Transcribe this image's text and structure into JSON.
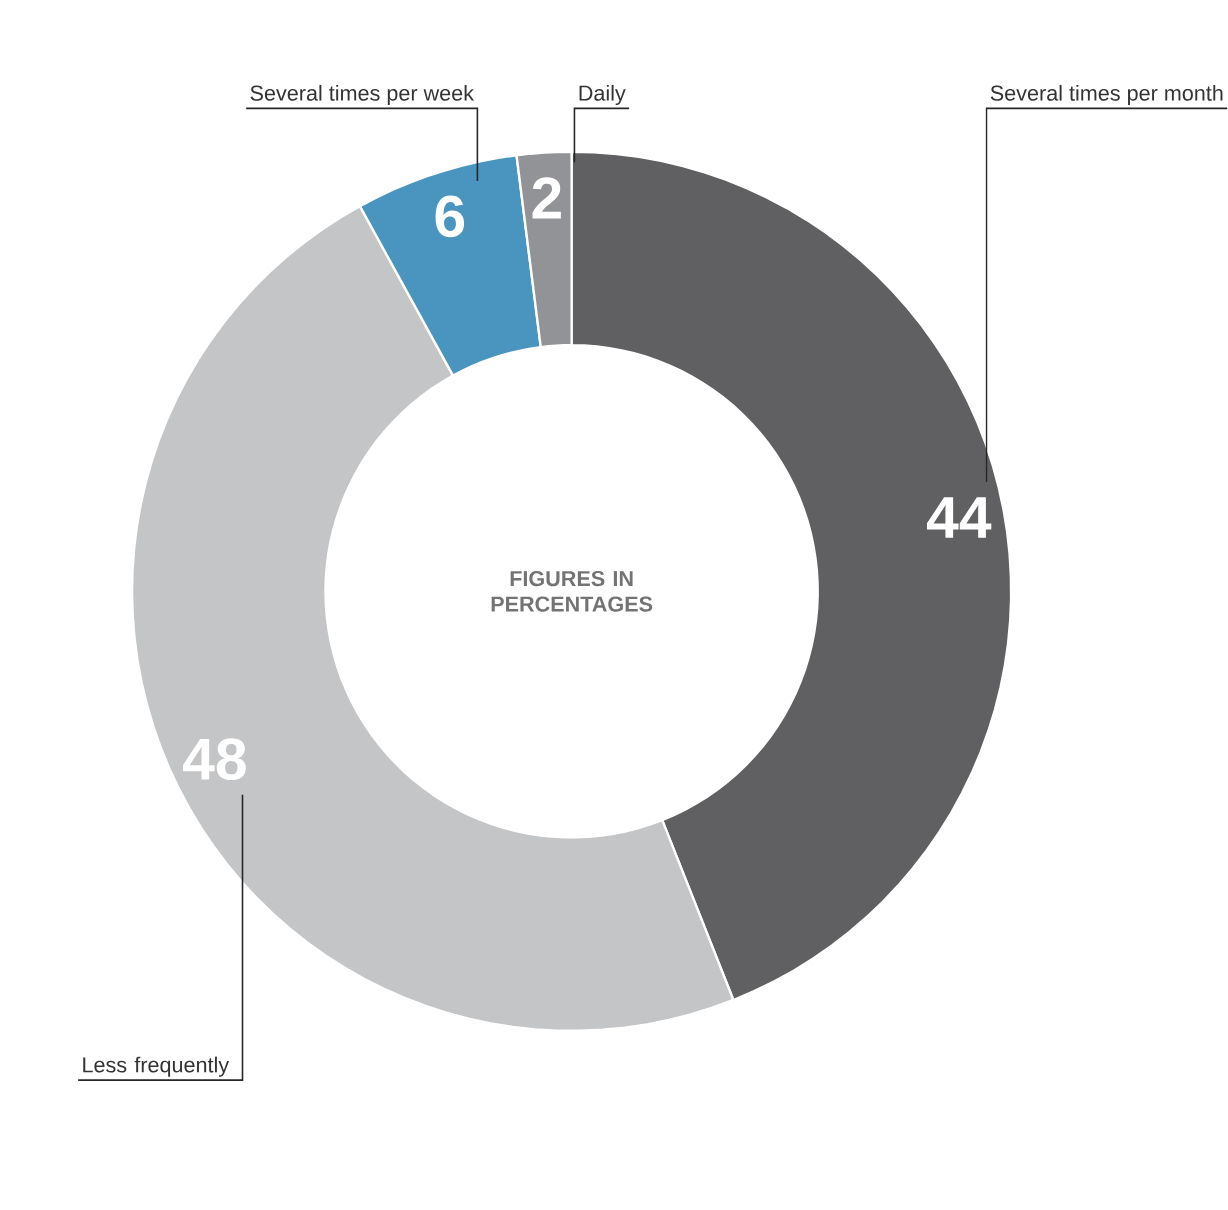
{
  "chart_data": {
    "type": "donut",
    "categories": [
      "Several times per month",
      "Less frequently",
      "Several times per week",
      "Daily"
    ],
    "values": [
      44,
      48,
      6,
      2
    ],
    "colors": [
      "#606062",
      "#c4c5c7",
      "#4a94c0",
      "#929396"
    ],
    "data_labels": true,
    "annotations": [
      "FIGURES IN PERCENTAGES"
    ]
  }
}
